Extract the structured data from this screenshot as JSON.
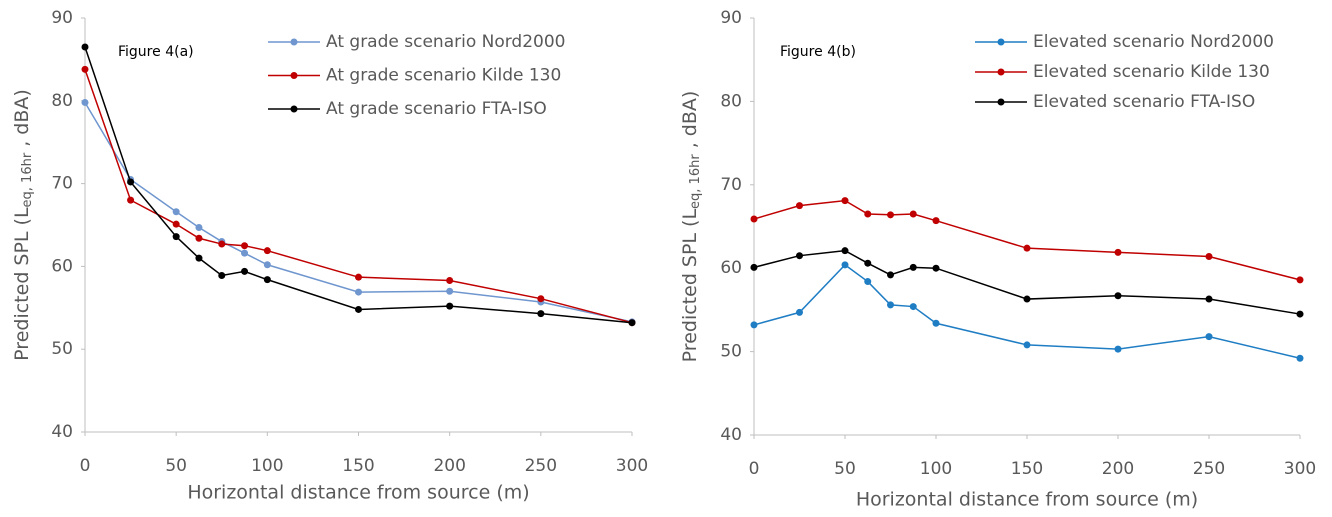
{
  "chart_data": [
    {
      "type": "line",
      "annotation": "Figure 4(a)",
      "xlabel": "Horizontal distance from source (m)",
      "ylabel": {
        "text": "Predicted SPL (L",
        "subscript": "eq, 16hr",
        "suffix": " , dBA)"
      },
      "x": [
        0,
        25,
        50,
        62.5,
        75,
        87.5,
        100,
        150,
        200,
        250,
        300
      ],
      "series": [
        {
          "name": "At grade scenario Nord2000",
          "color": "#6f96cf",
          "values": [
            79.8,
            70.5,
            66.6,
            64.7,
            63.0,
            61.6,
            60.2,
            56.9,
            57.0,
            55.7,
            53.3
          ]
        },
        {
          "name": "At grade scenario Kilde 130",
          "color": "#c00000",
          "values": [
            83.8,
            68.0,
            65.1,
            63.4,
            62.7,
            62.5,
            61.9,
            58.7,
            58.3,
            56.1,
            53.2
          ]
        },
        {
          "name": "At grade scenario FTA-ISO",
          "color": "#000000",
          "values": [
            86.5,
            70.2,
            63.6,
            61.0,
            58.9,
            59.4,
            58.4,
            54.8,
            55.2,
            54.3,
            53.2
          ]
        }
      ],
      "xlim": [
        0,
        300
      ],
      "xticks": [
        0,
        50,
        100,
        150,
        200,
        250,
        300
      ],
      "ylim": [
        40,
        90
      ],
      "yticks": [
        40,
        50,
        60,
        70,
        80,
        90
      ],
      "legend": "upper right",
      "grid": false
    },
    {
      "type": "line",
      "annotation": "Figure 4(b)",
      "xlabel": "Horizontal distance from source (m)",
      "ylabel": {
        "text": "Predicted SPL (L",
        "subscript": "eq, 16hr",
        "suffix": " , dBA)"
      },
      "x": [
        0,
        25,
        50,
        62.5,
        75,
        87.5,
        100,
        150,
        200,
        250,
        300
      ],
      "series": [
        {
          "name": "Elevated scenario Nord2000",
          "color": "#1f7dc4",
          "values": [
            53.2,
            54.7,
            60.4,
            58.4,
            55.6,
            55.4,
            53.4,
            50.8,
            50.3,
            51.8,
            49.2
          ]
        },
        {
          "name": "Elevated scenario Kilde 130",
          "color": "#c00000",
          "values": [
            65.9,
            67.5,
            68.1,
            66.5,
            66.4,
            66.5,
            65.7,
            62.4,
            61.9,
            61.4,
            58.6
          ]
        },
        {
          "name": "Elevated scenario FTA-ISO",
          "color": "#000000",
          "values": [
            60.1,
            61.5,
            62.1,
            60.6,
            59.2,
            60.1,
            60.0,
            56.3,
            56.7,
            56.3,
            54.5
          ]
        }
      ],
      "xlim": [
        0,
        300
      ],
      "xticks": [
        0,
        50,
        100,
        150,
        200,
        250,
        300
      ],
      "ylim": [
        40,
        90
      ],
      "yticks": [
        40,
        50,
        60,
        70,
        80,
        90
      ],
      "legend": "upper right",
      "grid": false
    }
  ]
}
